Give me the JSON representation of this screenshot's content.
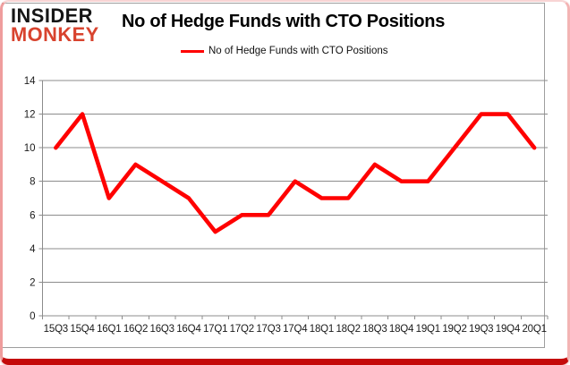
{
  "header": {
    "logo_line1": "INSIDER",
    "logo_line2": "MONKEY",
    "title": "No of Hedge Funds with CTO Positions"
  },
  "legend": {
    "label": "No of Hedge Funds with CTO Positions",
    "swatch_color": "#ff0000"
  },
  "chart_data": {
    "type": "line",
    "title": "No of Hedge Funds with CTO Positions",
    "categories": [
      "15Q3",
      "15Q4",
      "16Q1",
      "16Q2",
      "16Q3",
      "16Q4",
      "17Q1",
      "17Q2",
      "17Q3",
      "17Q4",
      "18Q1",
      "18Q2",
      "18Q3",
      "18Q4",
      "19Q1",
      "19Q2",
      "19Q3",
      "19Q4",
      "20Q1"
    ],
    "values": [
      10,
      12,
      7,
      9,
      8,
      7,
      5,
      6,
      6,
      8,
      7,
      7,
      9,
      8,
      8,
      10,
      12,
      12,
      10
    ],
    "xlabel": "",
    "ylabel": "",
    "ylim": [
      0,
      14
    ],
    "yticks": [
      0,
      2,
      4,
      6,
      8,
      10,
      12,
      14
    ],
    "grid": true,
    "legend_position": "top",
    "line_color": "#ff0000",
    "gridline_color": "#8c8c8c",
    "axis_color": "#8c8c8c",
    "tick_label_color": "#1a1a1a"
  }
}
